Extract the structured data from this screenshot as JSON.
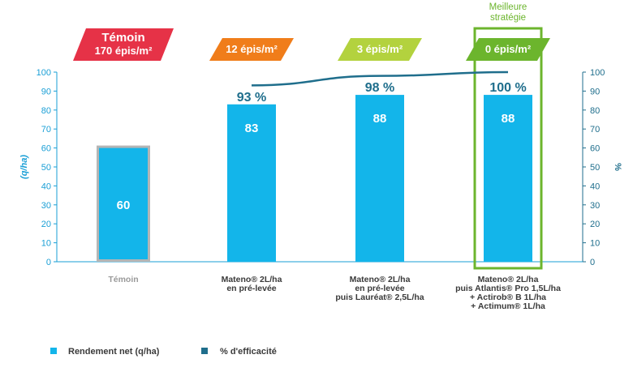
{
  "chart_data": {
    "type": "bar",
    "categories": [
      [
        "Témoin"
      ],
      [
        "Mateno® 2L/ha",
        "en pré-levée"
      ],
      [
        "Mateno® 2L/ha",
        "en pré-levée",
        "puis Lauréat® 2,5L/ha"
      ],
      [
        "Mateno® 2L/ha",
        "puis Atlantis® Pro 1,5L/ha",
        "+ Actirob® B 1L/ha",
        "+ Actimum® 1L/ha"
      ]
    ],
    "series": [
      {
        "name": "Rendement net (q/ha)",
        "type": "bar",
        "values": [
          60,
          83,
          88,
          88
        ],
        "color": "#13b5ea"
      },
      {
        "name": "% d'efficacité",
        "type": "line",
        "values": [
          null,
          93,
          98,
          100
        ],
        "labels": [
          "",
          "93 %",
          "98 %",
          "100 %"
        ],
        "color": "#1f6e8c"
      }
    ],
    "ylabel": "(q/ha)",
    "y2label": "%",
    "ylim": [
      0,
      100
    ],
    "y2lim": [
      0,
      100
    ],
    "yticks": [
      0,
      10,
      20,
      30,
      40,
      50,
      60,
      70,
      80,
      90,
      100
    ],
    "header_tags": [
      {
        "lines": [
          "Témoin",
          "170 épis/m²"
        ],
        "color": "#e63247"
      },
      {
        "lines": [
          "12 épis/m²"
        ],
        "color": "#f07d1a"
      },
      {
        "lines": [
          "3 épis/m²"
        ],
        "color": "#b3d23e"
      },
      {
        "lines": [
          "0 épis/m²"
        ],
        "color": "#6cb52d"
      }
    ],
    "highlight": {
      "index": 3,
      "label_lines": [
        "Meilleure",
        "stratégie"
      ],
      "color": "#6cb52d"
    },
    "control_border_color": "#b5b5b5",
    "grid": false,
    "legend_position": "bottom-left"
  }
}
